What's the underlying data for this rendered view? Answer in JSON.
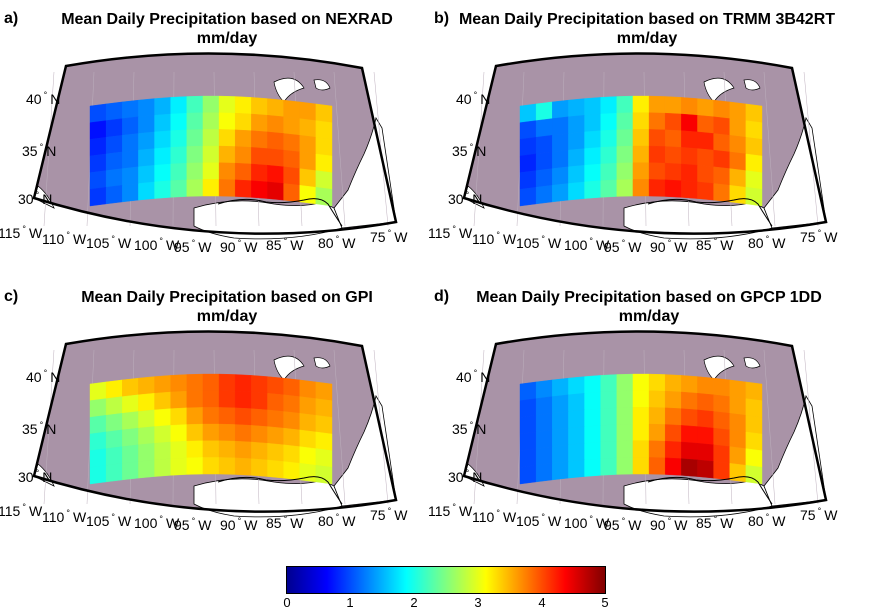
{
  "panels": [
    {
      "id": "a",
      "letter": "a)",
      "title": "Mean Daily Precipitation based on NEXRAD",
      "subtitle": "mm/day",
      "grid": [
        [
          1.0,
          1.1,
          1.2,
          1.3,
          1.5,
          1.8,
          2.2,
          2.6,
          3.0,
          3.2,
          3.4,
          3.5,
          3.6,
          3.6,
          3.4
        ],
        [
          0.7,
          0.9,
          1.1,
          1.3,
          1.6,
          1.9,
          2.3,
          2.7,
          3.1,
          3.3,
          3.6,
          3.7,
          3.6,
          3.5,
          3.3
        ],
        [
          0.8,
          1.0,
          1.2,
          1.4,
          1.7,
          2.0,
          2.4,
          2.8,
          3.3,
          3.6,
          3.8,
          3.9,
          3.8,
          3.6,
          3.3
        ],
        [
          0.9,
          1.1,
          1.2,
          1.5,
          1.8,
          2.1,
          2.5,
          2.9,
          3.5,
          3.7,
          4.0,
          4.0,
          3.9,
          3.6,
          3.2
        ],
        [
          1.0,
          1.2,
          1.3,
          1.6,
          1.9,
          2.2,
          2.6,
          3.0,
          3.7,
          3.9,
          4.2,
          4.3,
          4.0,
          3.4,
          2.9
        ],
        [
          0.9,
          1.1,
          1.3,
          1.7,
          2.0,
          2.3,
          2.7,
          3.2,
          3.8,
          4.2,
          4.4,
          4.5,
          3.9,
          3.1,
          2.7
        ]
      ]
    },
    {
      "id": "b",
      "letter": "b)",
      "title": "Mean Daily Precipitation based on TRMM 3B42RT",
      "subtitle": "mm/day",
      "grid": [
        [
          1.6,
          2.0,
          1.4,
          1.5,
          1.6,
          1.8,
          2.2,
          3.2,
          3.6,
          3.6,
          3.7,
          3.6,
          3.7,
          3.6,
          3.4
        ],
        [
          1.0,
          1.2,
          1.2,
          1.4,
          1.6,
          1.9,
          2.3,
          3.3,
          3.8,
          4.0,
          4.4,
          3.9,
          4.0,
          3.6,
          3.3
        ],
        [
          0.9,
          1.0,
          1.2,
          1.4,
          1.7,
          2.0,
          2.4,
          3.4,
          4.0,
          3.9,
          4.2,
          4.2,
          3.9,
          3.7,
          3.4
        ],
        [
          0.8,
          1.0,
          1.2,
          1.5,
          1.8,
          2.1,
          2.5,
          3.5,
          4.1,
          4.0,
          4.1,
          4.0,
          4.1,
          3.8,
          3.2
        ],
        [
          0.9,
          1.1,
          1.3,
          1.6,
          1.9,
          2.2,
          2.6,
          3.6,
          4.0,
          4.1,
          4.2,
          4.0,
          3.9,
          3.5,
          3.0
        ],
        [
          1.0,
          1.2,
          1.4,
          1.7,
          2.0,
          2.3,
          2.7,
          3.7,
          4.2,
          4.3,
          4.2,
          4.1,
          3.8,
          3.3,
          2.9
        ]
      ]
    },
    {
      "id": "c",
      "letter": "c)",
      "title": "Mean Daily Precipitation based on GPI",
      "subtitle": "mm/day",
      "grid": [
        [
          3.0,
          3.2,
          3.4,
          3.5,
          3.6,
          3.7,
          3.8,
          3.9,
          4.1,
          4.2,
          4.1,
          4.0,
          3.9,
          3.7,
          3.6
        ],
        [
          2.6,
          2.8,
          3.0,
          3.2,
          3.4,
          3.6,
          3.8,
          3.9,
          4.1,
          4.2,
          4.1,
          3.9,
          3.8,
          3.6,
          3.5
        ],
        [
          2.3,
          2.5,
          2.7,
          2.9,
          3.1,
          3.3,
          3.6,
          3.8,
          3.9,
          4.0,
          3.9,
          3.8,
          3.7,
          3.5,
          3.4
        ],
        [
          2.1,
          2.3,
          2.5,
          2.7,
          2.9,
          3.1,
          3.4,
          3.6,
          3.7,
          3.8,
          3.7,
          3.6,
          3.5,
          3.3,
          3.2
        ],
        [
          2.0,
          2.2,
          2.4,
          2.6,
          2.8,
          3.0,
          3.2,
          3.4,
          3.5,
          3.6,
          3.5,
          3.4,
          3.3,
          3.1,
          3.0
        ],
        [
          2.0,
          2.2,
          2.4,
          2.6,
          2.8,
          3.0,
          3.1,
          3.3,
          3.4,
          3.5,
          3.4,
          3.3,
          3.2,
          3.0,
          2.9
        ]
      ]
    },
    {
      "id": "d",
      "letter": "d)",
      "title": "Mean Daily Precipitation based on GPCP 1DD",
      "subtitle": "mm/day",
      "grid": [
        [
          1.1,
          1.3,
          1.5,
          1.7,
          1.9,
          2.2,
          2.6,
          3.1,
          3.3,
          3.5,
          3.6,
          3.7,
          3.7,
          3.6,
          3.5
        ],
        [
          1.0,
          1.2,
          1.4,
          1.6,
          1.9,
          2.2,
          2.6,
          3.1,
          3.4,
          3.6,
          3.8,
          3.9,
          3.8,
          3.6,
          3.4
        ],
        [
          1.0,
          1.2,
          1.4,
          1.6,
          1.9,
          2.2,
          2.6,
          3.2,
          3.5,
          3.8,
          4.0,
          4.1,
          3.9,
          3.7,
          3.4
        ],
        [
          1.0,
          1.2,
          1.4,
          1.6,
          1.9,
          2.2,
          2.6,
          3.2,
          3.6,
          4.0,
          4.3,
          4.3,
          4.0,
          3.7,
          3.3
        ],
        [
          1.0,
          1.2,
          1.4,
          1.6,
          1.9,
          2.2,
          2.6,
          3.3,
          3.8,
          4.2,
          4.5,
          4.5,
          4.1,
          3.6,
          3.1
        ],
        [
          1.0,
          1.2,
          1.4,
          1.6,
          1.9,
          2.2,
          2.6,
          3.3,
          3.9,
          4.4,
          4.8,
          4.7,
          4.1,
          3.4,
          2.9
        ]
      ]
    }
  ],
  "lat_labels": [
    "40",
    "35",
    "30"
  ],
  "lat_unit": "N",
  "lon_labels": [
    "115",
    "110",
    "105",
    "100",
    "95",
    "90",
    "85",
    "80",
    "75"
  ],
  "lon_unit": "W",
  "degree_symbol": "°",
  "colorbar": {
    "ticks": [
      "0",
      "1",
      "2",
      "3",
      "4",
      "5"
    ],
    "min": 0,
    "max": 5,
    "colormap": "jet"
  },
  "colors": {
    "land": "#a993a7",
    "outline": "#000000",
    "background": "#ffffff"
  }
}
